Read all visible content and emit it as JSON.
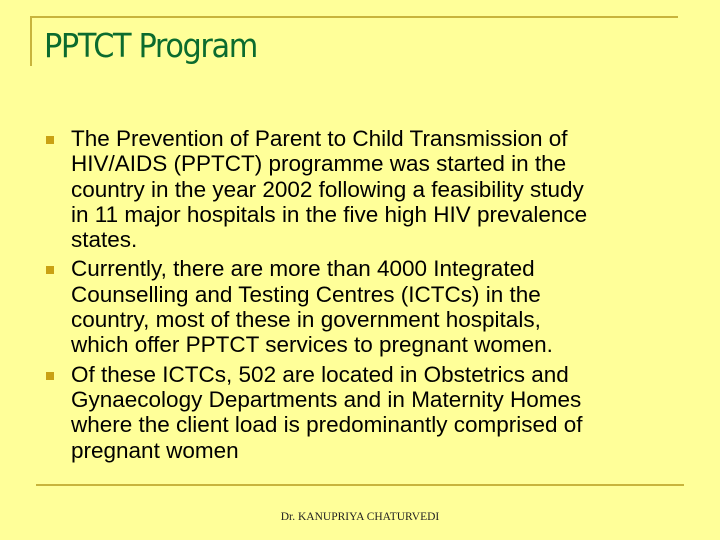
{
  "slide": {
    "title": "PPTCT Program",
    "bullets": [
      {
        "lines": [
          "The Prevention of Parent to Child Transmission of",
          "HIV/AIDS (PPTCT) programme was started in the",
          "country in the year 2002 following a feasibility study",
          "in 11 major hospitals in the five high HIV prevalence",
          "states."
        ]
      },
      {
        "lines": [
          "Currently, there are more than 4000 Integrated",
          "Counselling and Testing Centres (ICTCs) in the",
          "country, most of these in government hospitals,",
          "which offer PPTCT services to pregnant women."
        ]
      },
      {
        "lines": [
          "Of these ICTCs, 502 are located in Obstetrics and",
          "Gynaecology Departments and in Maternity Homes",
          "where the client load is predominantly comprised of",
          "pregnant women"
        ]
      }
    ],
    "footer": "Dr. KANUPRIYA CHATURVEDI",
    "colors": {
      "background": "#ffff99",
      "title": "#0b6b2e",
      "accent_line": "#c8b43c",
      "bullet": "#c9a114"
    }
  }
}
